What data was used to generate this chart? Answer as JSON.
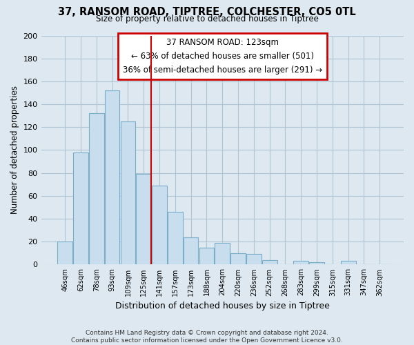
{
  "title": "37, RANSOM ROAD, TIPTREE, COLCHESTER, CO5 0TL",
  "subtitle": "Size of property relative to detached houses in Tiptree",
  "xlabel": "Distribution of detached houses by size in Tiptree",
  "ylabel": "Number of detached properties",
  "bar_color": "#c8dded",
  "bar_edge_color": "#7aaec8",
  "vline_color": "#cc0000",
  "categories": [
    "46sqm",
    "62sqm",
    "78sqm",
    "93sqm",
    "109sqm",
    "125sqm",
    "141sqm",
    "157sqm",
    "173sqm",
    "188sqm",
    "204sqm",
    "220sqm",
    "236sqm",
    "252sqm",
    "268sqm",
    "283sqm",
    "299sqm",
    "315sqm",
    "331sqm",
    "347sqm",
    "362sqm"
  ],
  "values": [
    20,
    98,
    132,
    152,
    125,
    79,
    69,
    46,
    24,
    15,
    19,
    10,
    9,
    4,
    0,
    3,
    2,
    0,
    3,
    0,
    0
  ],
  "vline_index": 5,
  "ylim": [
    0,
    200
  ],
  "yticks": [
    0,
    20,
    40,
    60,
    80,
    100,
    120,
    140,
    160,
    180,
    200
  ],
  "annotation_box_title": "37 RANSOM ROAD: 123sqm",
  "annotation_line1": "← 63% of detached houses are smaller (501)",
  "annotation_line2": "36% of semi-detached houses are larger (291) →",
  "annotation_box_color": "#ffffff",
  "annotation_box_edge": "#cc0000",
  "footnote1": "Contains HM Land Registry data © Crown copyright and database right 2024.",
  "footnote2": "Contains public sector information licensed under the Open Government Licence v3.0.",
  "bg_color": "#dde8f0",
  "plot_bg_color": "#dde8f0",
  "grid_color": "#b0c4d4"
}
